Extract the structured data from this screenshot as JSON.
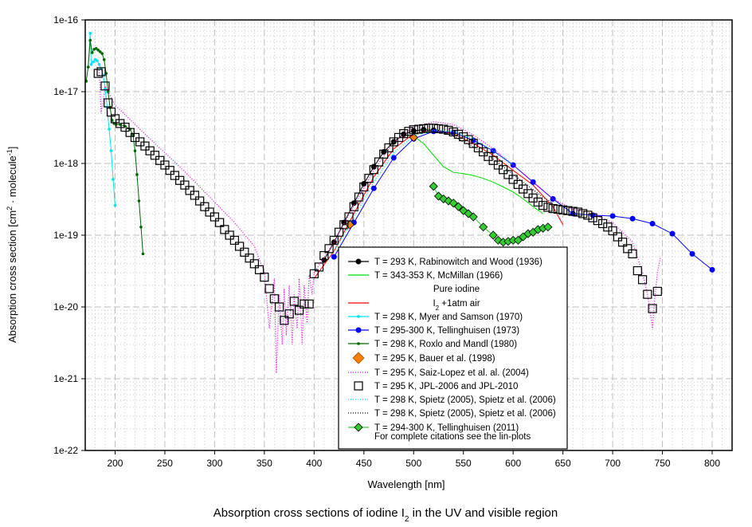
{
  "chart_data": {
    "type": "line",
    "caption": "Absorption cross sections of iodine I",
    "caption_sub": "2",
    "caption_tail": " in the UV and visible region",
    "xlabel": "Wavelength [nm]",
    "ylabel_main": "Absorption cross section [cm",
    "ylabel_sup1": "2",
    "ylabel_mid": " · molecule",
    "ylabel_sup2": "-1",
    "ylabel_end": "]",
    "yscale": "log",
    "xlim": [
      170,
      820
    ],
    "ylim": [
      1e-22,
      1e-16
    ],
    "grid": true,
    "x_ticks": [
      200,
      250,
      300,
      350,
      400,
      450,
      500,
      550,
      600,
      650,
      700,
      750,
      800
    ],
    "y_tick_labels": [
      "1e-16",
      "1e-17",
      "1e-18",
      "1e-19",
      "1e-20",
      "1e-21",
      "1e-22"
    ],
    "legend_placement": "bottom-center",
    "legend": [
      {
        "label": "T = 293 K, Rabinowitch and Wood (1936)",
        "color": "#000000",
        "style": "line-circle"
      },
      {
        "label": "T = 343-353 K, McMillan (1966)",
        "color": "#00dd00",
        "style": "line"
      },
      {
        "label": "Pure iodine",
        "color": "",
        "style": "none"
      },
      {
        "label": "I",
        "sub": "2",
        "tail": " +1atm air",
        "color": "#ff0000",
        "style": "line"
      },
      {
        "label": "T = 298 K, Myer and Samson (1970)",
        "color": "#00e5ee",
        "style": "line-small"
      },
      {
        "label": "T = 295-300 K, Tellinghuisen (1973)",
        "color": "#0000ff",
        "style": "line-circle"
      },
      {
        "label": "T = 298 K, Roxlo and Mandl (1980)",
        "color": "#006600",
        "style": "line-small"
      },
      {
        "label": "T = 295 K, Bauer et al. (1998)",
        "color": "#ff8000",
        "style": "diamond"
      },
      {
        "label": "T = 295 K, Saiz-Lopez et al. al. (2004)",
        "color": "#dd00dd",
        "style": "dotted"
      },
      {
        "label": "T = 295 K, JPL-2006 and JPL-2010",
        "color": "#000000",
        "style": "square"
      },
      {
        "label": "T = 298 K, Spietz (2005), Spietz et al. (2006)",
        "color": "#00dddd",
        "style": "dotted"
      },
      {
        "label": "T = 298 K, Spietz (2005), Spietz et al. (2006)",
        "color": "#000000",
        "style": "dotted"
      },
      {
        "label": "T = 294-300 K, Tellinghuisen (2011)",
        "color": "#33cc33",
        "style": "line-diamond"
      }
    ],
    "legend_note": "For complete citations see the lin-plots",
    "series": [
      {
        "name": "Rabinowitch and Wood (1936)",
        "color": "#000000",
        "marker": "circle",
        "x": [
          410,
          420,
          430,
          440,
          450,
          460,
          470,
          480,
          490,
          500,
          510,
          520
        ],
        "y": [
          4.5e-20,
          8e-20,
          1.5e-19,
          2.8e-19,
          5.2e-19,
          9e-19,
          1.45e-18,
          2e-18,
          2.55e-18,
          2.85e-18,
          2.95e-18,
          2.9e-18
        ]
      },
      {
        "name": "McMillan (1966) pure iodine",
        "color": "#00dd00",
        "marker": "none",
        "x": [
          500,
          510,
          520,
          530,
          540,
          550,
          560,
          570,
          580,
          590,
          600,
          610,
          620,
          630
        ],
        "y": [
          2.4e-18,
          1.9e-18,
          1.3e-18,
          9e-19,
          7.5e-19,
          7.2e-19,
          6.8e-19,
          6.2e-19,
          5.5e-19,
          4.7e-19,
          4e-19,
          3.2e-19,
          2.5e-19,
          2e-19
        ]
      },
      {
        "name": "McMillan (1966) I2 + 1atm air",
        "color": "#ff0000",
        "marker": "none",
        "x": [
          400,
          420,
          440,
          460,
          480,
          500,
          520,
          540,
          560,
          580,
          600,
          620,
          640,
          650
        ],
        "y": [
          2.5e-20,
          6e-20,
          2e-19,
          6.5e-19,
          1.6e-18,
          2.6e-18,
          2.9e-18,
          2.6e-18,
          1.9e-18,
          1.3e-18,
          8e-19,
          5e-19,
          2.5e-19,
          1.4e-19
        ]
      },
      {
        "name": "Myer and Samson (1970)",
        "color": "#00e5ee",
        "marker": "small",
        "x": [
          173,
          175,
          176,
          178,
          180,
          182,
          184,
          186,
          188,
          190,
          192,
          194,
          196,
          198,
          200
        ],
        "y": [
          2.2e-17,
          6.5e-17,
          2.4e-17,
          2.6e-17,
          2.8e-17,
          2.7e-17,
          2.4e-17,
          2.1e-17,
          1.7e-17,
          1.1e-17,
          6e-18,
          3e-18,
          1.5e-18,
          6e-19,
          2.6e-19
        ]
      },
      {
        "name": "Tellinghuisen (1973)",
        "color": "#0000ff",
        "marker": "circle",
        "x": [
          420,
          440,
          460,
          480,
          500,
          520,
          540,
          560,
          580,
          600,
          620,
          640,
          660,
          680,
          700,
          720,
          740,
          760,
          780,
          800
        ],
        "y": [
          5e-20,
          1.5e-19,
          4.5e-19,
          1.2e-18,
          2.2e-18,
          2.8e-18,
          2.7e-18,
          2.1e-18,
          1.5e-18,
          9.5e-19,
          5.5e-19,
          3.2e-19,
          2e-19,
          1.9e-19,
          1.85e-19,
          1.7e-19,
          1.45e-19,
          1.05e-19,
          5.5e-20,
          3.3e-20
        ]
      },
      {
        "name": "Roxlo and Mandl (1980)",
        "color": "#006600",
        "marker": "small",
        "x": [
          171,
          173,
          175,
          177,
          179,
          181,
          183,
          185,
          187,
          189,
          191,
          193,
          195,
          197,
          199,
          201,
          205,
          210,
          215,
          218,
          220,
          222,
          224,
          226,
          228
        ],
        "y": [
          1.4e-17,
          2.2e-17,
          5.2e-17,
          3.5e-17,
          3.9e-17,
          4e-17,
          3.8e-17,
          3.6e-17,
          3.4e-17,
          2.8e-17,
          1.8e-17,
          1e-17,
          6e-18,
          4e-18,
          3.6e-18,
          3.5e-18,
          3.5e-18,
          3.3e-18,
          3e-18,
          2.5e-18,
          1.5e-18,
          7e-19,
          3e-19,
          1.3e-19,
          5.5e-20
        ]
      },
      {
        "name": "Bauer et al. (1998)",
        "color": "#ff8000",
        "marker": "diamond",
        "x": [
          436,
          500
        ],
        "y": [
          1.4e-19,
          2.3e-18
        ]
      },
      {
        "name": "Saiz-Lopez et al. (2004)",
        "color": "#dd00dd",
        "marker": "dotted",
        "x": [
          184,
          186,
          190,
          200,
          220,
          240,
          260,
          280,
          300,
          320,
          340,
          350,
          355,
          360,
          362,
          365,
          368,
          370,
          372,
          375,
          378,
          380,
          383,
          385,
          388,
          390,
          393,
          395,
          398,
          400,
          420,
          440,
          460,
          480,
          500,
          520,
          540,
          560,
          580,
          600,
          620,
          640,
          660,
          680,
          700,
          720,
          730,
          735,
          738,
          740,
          742,
          745,
          748
        ],
        "y": [
          2e-17,
          5e-18,
          1.2e-17,
          6.5e-18,
          3.5e-18,
          1.9e-18,
          1.05e-18,
          5.6e-19,
          2.9e-19,
          1.5e-19,
          7e-20,
          3e-20,
          5e-21,
          2.5e-20,
          1.2e-21,
          1.5e-20,
          3e-21,
          1.8e-20,
          4e-21,
          2e-20,
          3e-21,
          1.5e-20,
          5e-21,
          2.5e-20,
          3e-21,
          2e-20,
          6e-21,
          2.8e-20,
          1.5e-20,
          3e-20,
          8e-20,
          2.6e-19,
          8e-19,
          2e-18,
          3.2e-18,
          3.8e-18,
          3.5e-18,
          2.5e-18,
          1.6e-18,
          9.5e-19,
          5.5e-19,
          3.2e-19,
          2.3e-19,
          2e-19,
          1.5e-19,
          8e-20,
          3e-20,
          1.5e-20,
          8e-21,
          5e-21,
          1.2e-20,
          3e-20,
          5e-20
        ]
      },
      {
        "name": "JPL-2006 and JPL-2010",
        "color": "#000000",
        "marker": "square",
        "x": [
          183,
          186,
          190,
          193,
          196,
          200,
          205,
          210,
          215,
          220,
          225,
          230,
          235,
          240,
          245,
          250,
          255,
          260,
          265,
          270,
          275,
          280,
          285,
          290,
          295,
          300,
          305,
          310,
          315,
          320,
          325,
          330,
          335,
          340,
          345,
          350,
          355,
          360,
          365,
          370,
          375,
          380,
          385,
          390,
          395,
          400,
          405,
          410,
          415,
          420,
          425,
          430,
          435,
          440,
          445,
          450,
          455,
          460,
          465,
          470,
          475,
          480,
          485,
          490,
          495,
          500,
          505,
          510,
          515,
          520,
          525,
          530,
          535,
          540,
          545,
          550,
          555,
          560,
          565,
          570,
          575,
          580,
          585,
          590,
          595,
          600,
          605,
          610,
          615,
          620,
          625,
          630,
          635,
          640,
          645,
          650,
          655,
          660,
          665,
          670,
          675,
          680,
          685,
          690,
          695,
          700,
          705,
          710,
          715,
          720,
          725,
          730,
          735,
          740,
          745
        ],
        "y": [
          1.8e-17,
          1.9e-17,
          1.2e-17,
          7e-18,
          5.2e-18,
          4.2e-18,
          3.6e-18,
          3.2e-18,
          2.7e-18,
          2.3e-18,
          2e-18,
          1.75e-18,
          1.5e-18,
          1.3e-18,
          1.1e-18,
          9.5e-19,
          8e-19,
          6.8e-19,
          5.8e-19,
          5e-19,
          4.2e-19,
          3.6e-19,
          3e-19,
          2.5e-19,
          2.1e-19,
          1.8e-19,
          1.5e-19,
          1.2e-19,
          1e-19,
          8.5e-20,
          7e-20,
          5.8e-20,
          4.8e-20,
          4e-20,
          3.3e-20,
          2.6e-20,
          1.8e-20,
          1.3e-20,
          1e-20,
          6.5e-21,
          8e-21,
          1.2e-20,
          9e-21,
          1.1e-20,
          1.1e-20,
          2.9e-20,
          3.6e-20,
          5.2e-20,
          6.5e-20,
          8.5e-20,
          1.1e-19,
          1.4e-19,
          1.8e-19,
          2.5e-19,
          3.4e-19,
          4.7e-19,
          6.2e-19,
          8.2e-19,
          1.05e-18,
          1.35e-18,
          1.65e-18,
          2e-18,
          2.3e-18,
          2.6e-18,
          2.8e-18,
          2.95e-18,
          3e-18,
          3.05e-18,
          3.1e-18,
          3.1e-18,
          3.05e-18,
          3e-18,
          2.9e-18,
          2.75e-18,
          2.55e-18,
          2.35e-18,
          2.15e-18,
          1.9e-18,
          1.65e-18,
          1.45e-18,
          1.25e-18,
          1.1e-18,
          9.5e-19,
          8.2e-19,
          7e-19,
          6e-19,
          5.1e-19,
          4.4e-19,
          3.8e-19,
          3.3e-19,
          2.9e-19,
          2.6e-19,
          2.45e-19,
          2.35e-19,
          2.3e-19,
          2.25e-19,
          2.2e-19,
          2.15e-19,
          2.1e-19,
          2e-19,
          1.9e-19,
          1.75e-19,
          1.6e-19,
          1.45e-19,
          1.3e-19,
          1.15e-19,
          9.5e-20,
          8e-20,
          6.5e-20,
          5.5e-20,
          3.2e-20,
          2.4e-20,
          1.5e-20,
          9.5e-21,
          1.65e-20
        ]
      },
      {
        "name": "Spietz et al. (2006) cyan",
        "color": "#00dddd",
        "marker": "dotted",
        "x": [
          420,
          440,
          460,
          480,
          500,
          520,
          540,
          560,
          580,
          600
        ],
        "y": [
          6e-20,
          1.8e-19,
          5.5e-19,
          1.4e-18,
          2.4e-18,
          2.9e-18,
          2.8e-18,
          2.2e-18,
          1.5e-18,
          9.5e-19
        ]
      },
      {
        "name": "Spietz et al. (2006) black",
        "color": "#000000",
        "marker": "dotted",
        "x": [
          520,
          530,
          540,
          550,
          560,
          570,
          580,
          590,
          600,
          610,
          620,
          630,
          640
        ],
        "y": [
          3e-18,
          2.8e-18,
          2.4e-18,
          2e-18,
          1.7e-18,
          1.4e-18,
          1.15e-18,
          9e-19,
          7e-19,
          5.5e-19,
          4.3e-19,
          3.4e-19,
          2.8e-19
        ]
      },
      {
        "name": "Tellinghuisen (2011)",
        "color": "#33cc33",
        "marker": "diamond",
        "x": [
          520,
          525,
          530,
          535,
          540,
          545,
          550,
          555,
          560,
          570,
          580,
          585,
          590,
          595,
          600,
          605,
          610,
          615,
          620,
          625,
          630,
          635
        ],
        "y": [
          4.8e-19,
          3.5e-19,
          3.2e-19,
          3e-19,
          2.8e-19,
          2.5e-19,
          2.2e-19,
          2e-19,
          1.8e-19,
          1.3e-19,
          1e-19,
          8.5e-20,
          8e-20,
          8.2e-20,
          8.5e-20,
          8.5e-20,
          9.5e-20,
          1.05e-19,
          1.1e-19,
          1.2e-19,
          1.25e-19,
          1.3e-19
        ]
      }
    ]
  }
}
